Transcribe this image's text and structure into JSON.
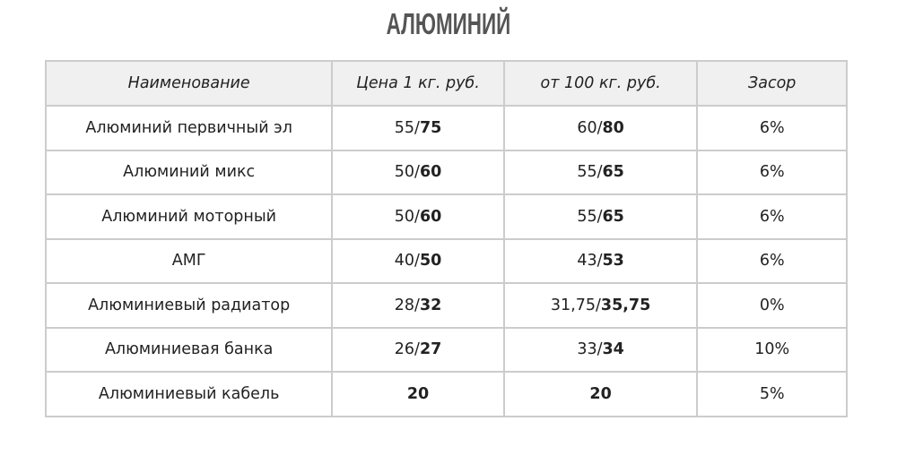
{
  "title": "АЛЮМИНИЙ",
  "table": {
    "headers": [
      "Наименование",
      "Цена 1 кг. руб.",
      "от 100 кг. руб.",
      "Засор"
    ],
    "rows": [
      {
        "name": "Алюминий первичный эл",
        "price": {
          "plain": "55/",
          "bold": "75"
        },
        "price100": {
          "plain": "60/",
          "bold": "80"
        },
        "waste": "6%"
      },
      {
        "name": "Алюминий микс",
        "price": {
          "plain": "50/",
          "bold": "60"
        },
        "price100": {
          "plain": "55/",
          "bold": "65"
        },
        "waste": "6%"
      },
      {
        "name": "Алюминий моторный",
        "price": {
          "plain": "50/",
          "bold": "60"
        },
        "price100": {
          "plain": "55/",
          "bold": "65"
        },
        "waste": "6%"
      },
      {
        "name": "АМГ",
        "price": {
          "plain": "40/",
          "bold": "50"
        },
        "price100": {
          "plain": "43/",
          "bold": "53"
        },
        "waste": "6%"
      },
      {
        "name": "Алюминиевый радиатор",
        "price": {
          "plain": "28/",
          "bold": "32"
        },
        "price100": {
          "plain": "31,75/",
          "bold": "35,75"
        },
        "waste": "0%"
      },
      {
        "name": "Алюминиевая банка",
        "price": {
          "plain": "26/",
          "bold": "27"
        },
        "price100": {
          "plain": "33/",
          "bold": "34"
        },
        "waste": "10%"
      },
      {
        "name": "Алюминиевый кабель",
        "price": {
          "plain": "",
          "bold": "20"
        },
        "price100": {
          "plain": "",
          "bold": "20"
        },
        "waste": "5%"
      }
    ]
  }
}
